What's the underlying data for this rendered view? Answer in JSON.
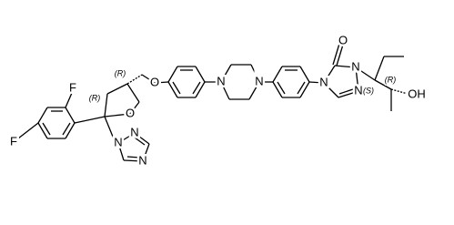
{
  "atoms": [
    "F",
    "F",
    "O",
    "O",
    "N",
    "N",
    "N",
    "N",
    "N",
    "N",
    "N",
    "N",
    "O",
    "OH"
  ],
  "stereo": [
    "(R)",
    "(R)",
    "(S)",
    "(R)"
  ]
}
